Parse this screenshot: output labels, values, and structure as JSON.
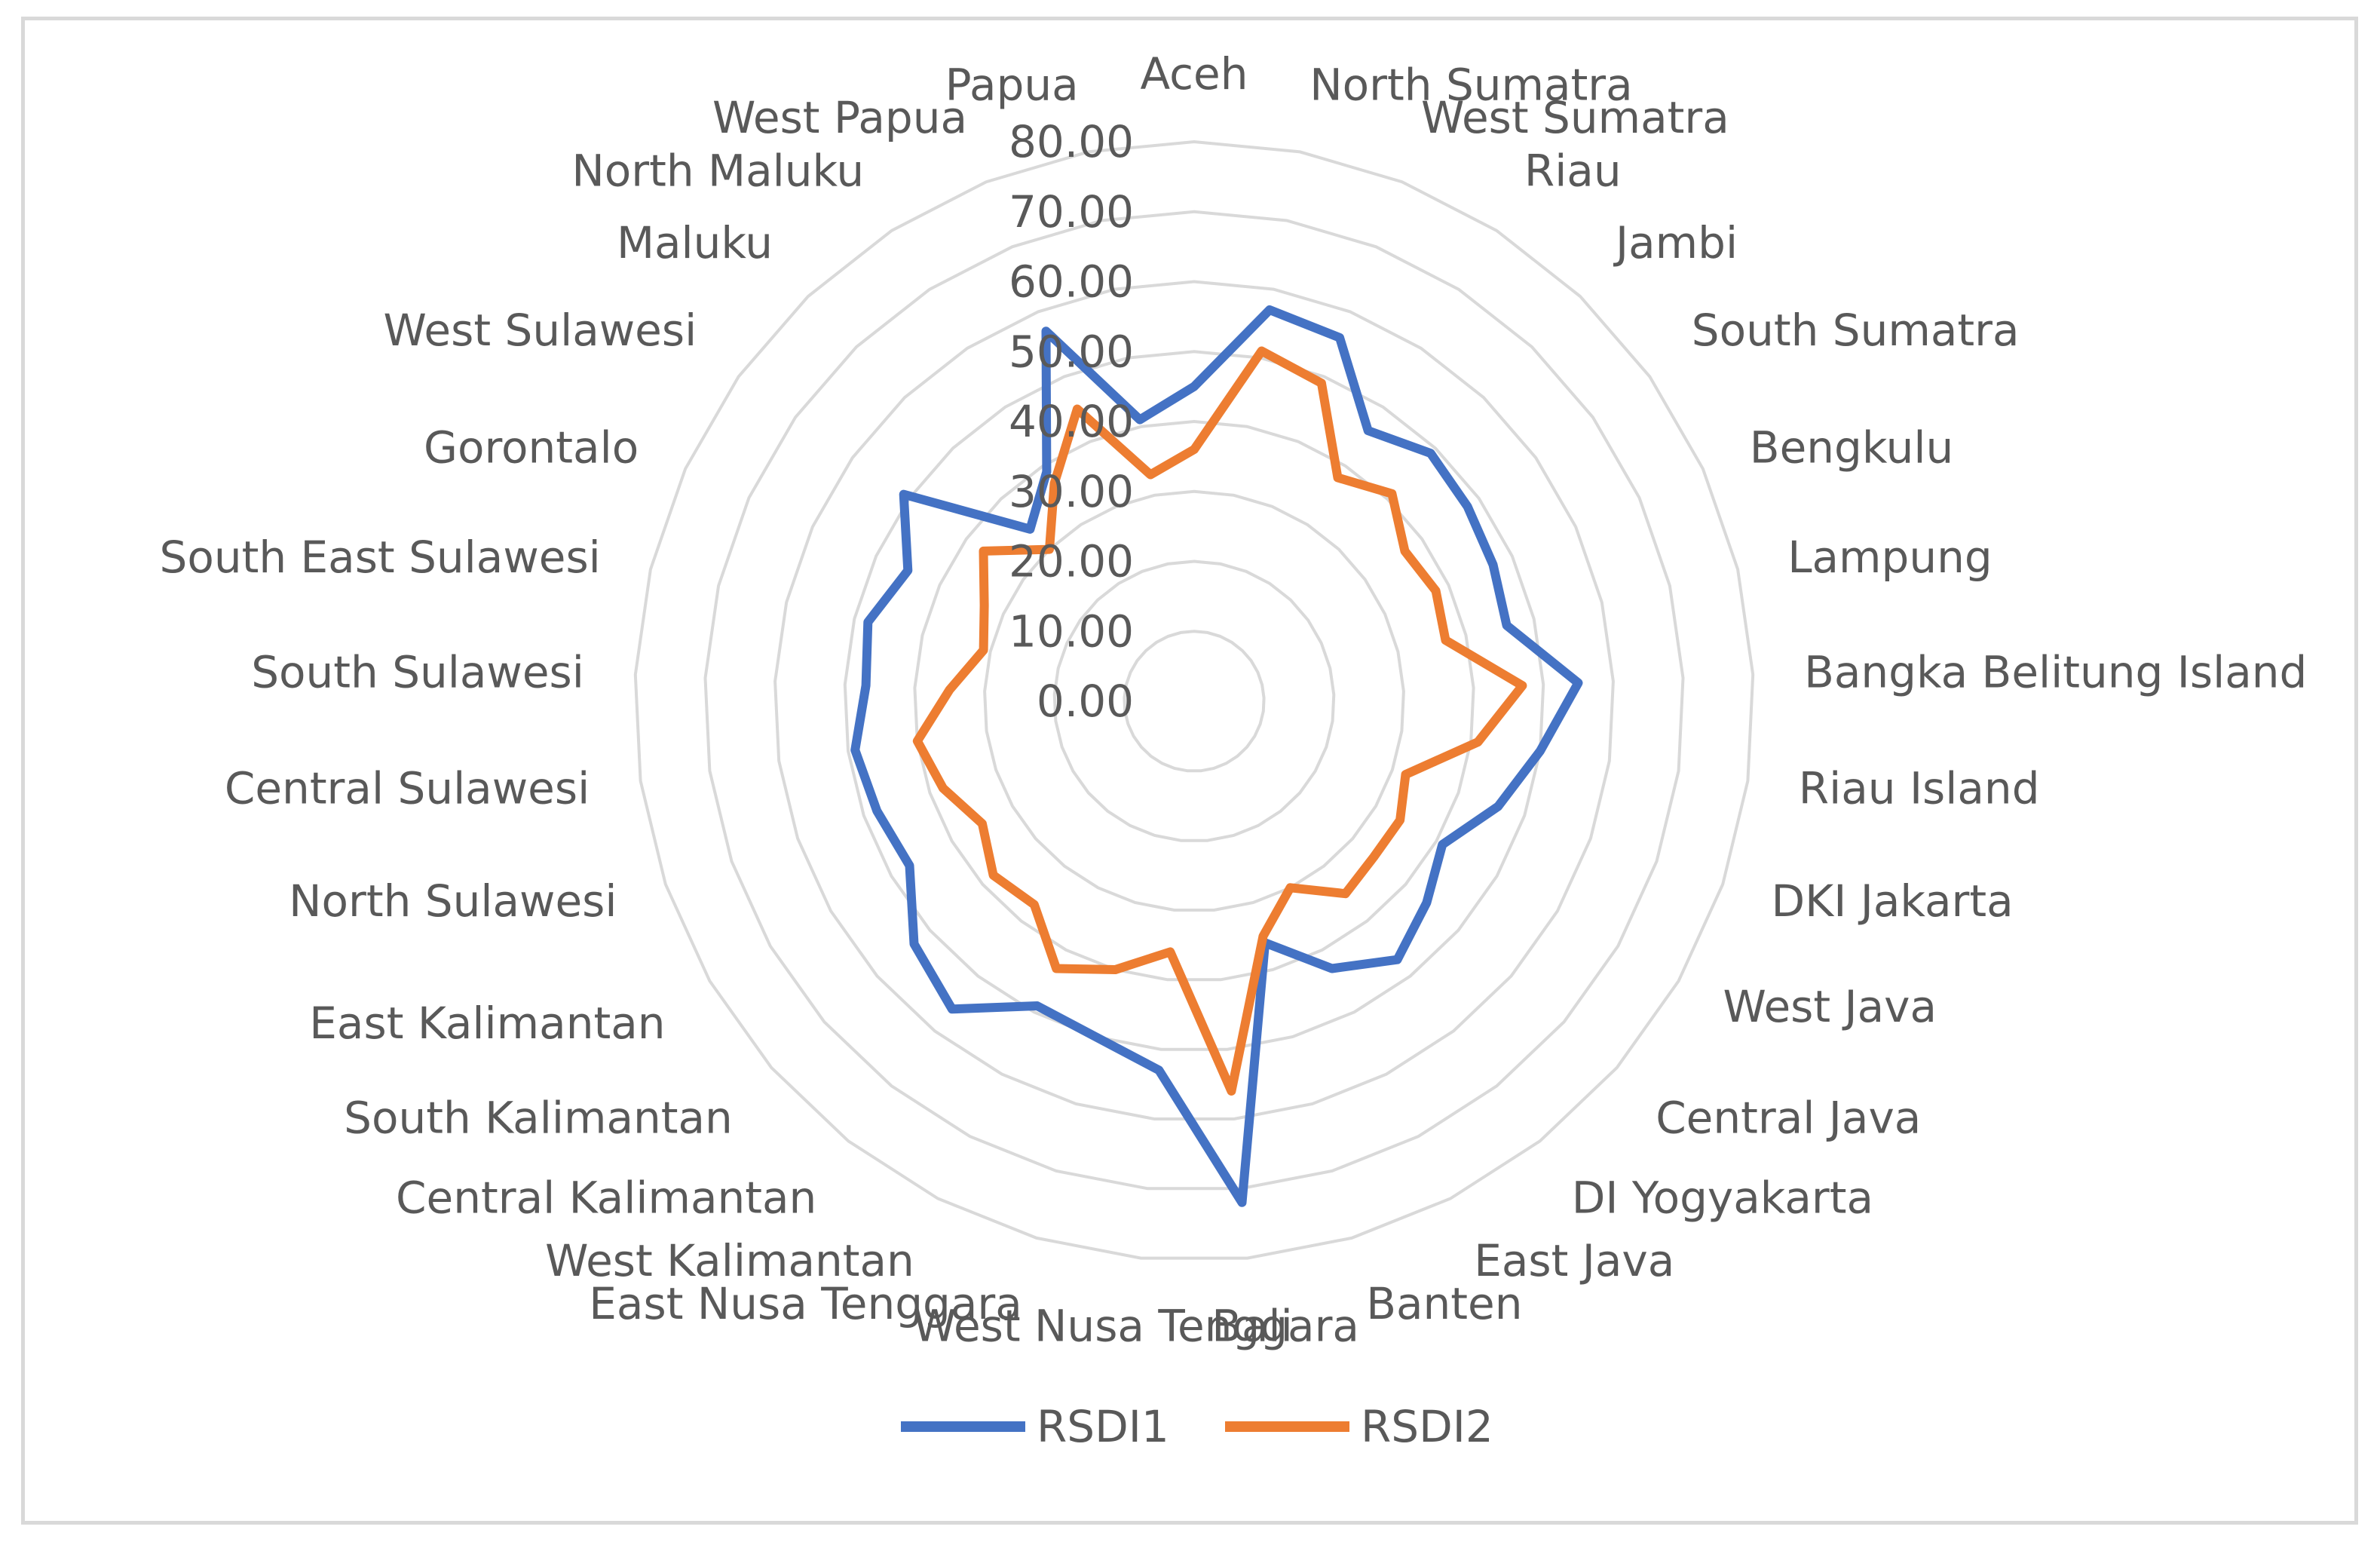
{
  "chart_data": {
    "type": "radar",
    "title": "",
    "categories": [
      "Aceh",
      "North Sumatra",
      "West Sumatra",
      "Riau",
      "Jambi",
      "South Sumatra",
      "Bengkulu",
      "Lampung",
      "Bangka Belitung Island",
      "Riau Island",
      "DKI Jakarta",
      "West Java",
      "Central Java",
      "DI Yogyakarta",
      "East Java",
      "Banten",
      "Bali",
      "West Nusa Tenggara",
      "East Nusa Tenggara",
      "West Kalimantan",
      "Central Kalimantan",
      "South Kalimantan",
      "East Kalimantan",
      "North Sulawesi",
      "Central Sulawesi",
      "South Sulawesi",
      "South East Sulawesi",
      "Gorontalo",
      "West Sulawesi",
      "Maluku",
      "North Maluku",
      "West Papua",
      "Papua"
    ],
    "axis_ticks": [
      "0.00",
      "10.00",
      "20.00",
      "30.00",
      "40.00",
      "50.00",
      "60.00",
      "70.00",
      "80.00"
    ],
    "rmin": 0,
    "rmax": 80,
    "series": [
      {
        "name": "RSDI1",
        "color": "#4472C4",
        "values": [
          45,
          57,
          56,
          46,
          49,
          48,
          47,
          46,
          55,
          50,
          46,
          41,
          44,
          47,
          43,
          36,
          72,
          53,
          50,
          49,
          56,
          53,
          47,
          48,
          49,
          47,
          48,
          45,
          51,
          34,
          39,
          57,
          41
        ]
      },
      {
        "name": "RSDI2",
        "color": "#ED7D31",
        "values": [
          36,
          51,
          49,
          38,
          41,
          37,
          38,
          37,
          47,
          41,
          32,
          34,
          34,
          35,
          30,
          35,
          56,
          36,
          40,
          43,
          37,
          38,
          35,
          38,
          40,
          35,
          31,
          33,
          37,
          30,
          37,
          45,
          33
        ]
      }
    ],
    "legend_position": "bottom"
  }
}
